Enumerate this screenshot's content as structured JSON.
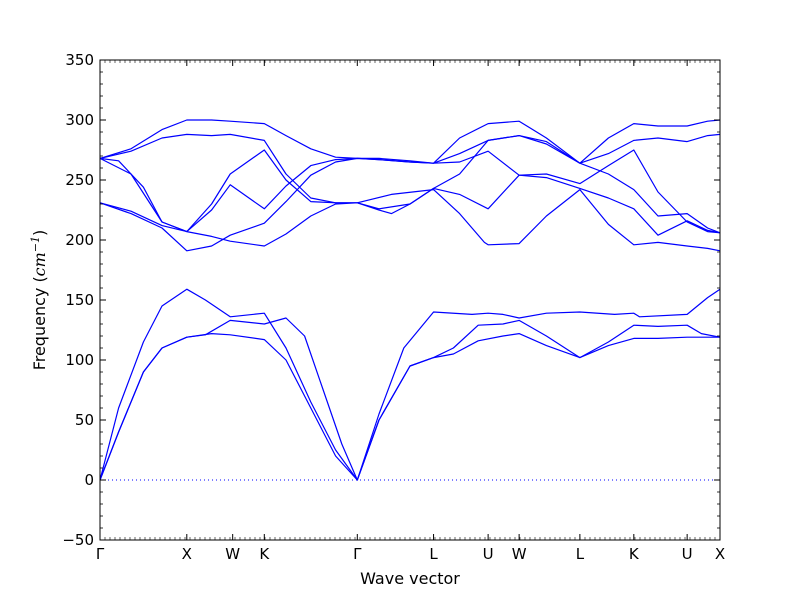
{
  "chart_data": {
    "type": "line",
    "xlabel": "Wave vector",
    "ylabel": {
      "text": "Frequency (",
      "unit_base": "cm",
      "unit_exp": "−1",
      "close": ")"
    },
    "ylim": [
      -50,
      350
    ],
    "yticks": [
      "−50",
      "0",
      "50",
      "100",
      "150",
      "200",
      "250",
      "300",
      "350"
    ],
    "ytick_values": [
      -50,
      0,
      50,
      100,
      150,
      200,
      250,
      300,
      350
    ],
    "xlim": [
      0,
      1
    ],
    "kpoints": [
      {
        "label": "Γ",
        "x": 0.0
      },
      {
        "label": "X",
        "x": 0.14
      },
      {
        "label": "W",
        "x": 0.214
      },
      {
        "label": "K",
        "x": 0.265
      },
      {
        "label": "Γ",
        "x": 0.415
      },
      {
        "label": "L",
        "x": 0.538
      },
      {
        "label": "U",
        "x": 0.626
      },
      {
        "label": "W",
        "x": 0.676
      },
      {
        "label": "L",
        "x": 0.774
      },
      {
        "label": "K",
        "x": 0.861
      },
      {
        "label": "U",
        "x": 0.947
      },
      {
        "label": "X",
        "x": 1.0
      }
    ],
    "zero_line": true,
    "line_color": "#0000ff",
    "series": [
      {
        "values": [
          [
            0,
            0
          ],
          [
            0.03,
            60
          ],
          [
            0.07,
            115
          ],
          [
            0.1,
            145
          ],
          [
            0.14,
            159
          ],
          [
            0.17,
            150
          ],
          [
            0.21,
            136
          ],
          [
            0.265,
            139
          ],
          [
            0.3,
            110
          ],
          [
            0.34,
            65
          ],
          [
            0.38,
            25
          ],
          [
            0.415,
            0
          ],
          [
            0.45,
            55
          ],
          [
            0.49,
            110
          ],
          [
            0.538,
            140
          ],
          [
            0.6,
            138
          ],
          [
            0.626,
            139
          ],
          [
            0.65,
            138
          ],
          [
            0.676,
            135
          ],
          [
            0.72,
            139
          ],
          [
            0.774,
            140
          ],
          [
            0.83,
            138
          ],
          [
            0.861,
            139
          ],
          [
            0.87,
            136
          ],
          [
            0.947,
            138
          ],
          [
            0.98,
            152
          ],
          [
            1.0,
            159
          ]
        ]
      },
      {
        "values": [
          [
            0,
            0
          ],
          [
            0.03,
            40
          ],
          [
            0.07,
            90
          ],
          [
            0.1,
            110
          ],
          [
            0.14,
            119
          ],
          [
            0.17,
            121
          ],
          [
            0.21,
            133
          ],
          [
            0.265,
            130
          ],
          [
            0.3,
            135
          ],
          [
            0.33,
            120
          ],
          [
            0.36,
            75
          ],
          [
            0.39,
            30
          ],
          [
            0.415,
            0
          ],
          [
            0.45,
            50
          ],
          [
            0.5,
            95
          ],
          [
            0.538,
            102
          ],
          [
            0.57,
            110
          ],
          [
            0.61,
            129
          ],
          [
            0.65,
            130
          ],
          [
            0.676,
            133
          ],
          [
            0.72,
            120
          ],
          [
            0.774,
            102
          ],
          [
            0.82,
            115
          ],
          [
            0.861,
            129
          ],
          [
            0.9,
            128
          ],
          [
            0.947,
            129
          ],
          [
            0.97,
            122
          ],
          [
            1.0,
            119
          ]
        ]
      },
      {
        "values": [
          [
            0,
            0
          ],
          [
            0.03,
            40
          ],
          [
            0.07,
            90
          ],
          [
            0.1,
            110
          ],
          [
            0.14,
            119
          ],
          [
            0.18,
            122
          ],
          [
            0.21,
            121
          ],
          [
            0.265,
            117
          ],
          [
            0.3,
            100
          ],
          [
            0.34,
            60
          ],
          [
            0.38,
            20
          ],
          [
            0.415,
            0
          ],
          [
            0.45,
            50
          ],
          [
            0.5,
            95
          ],
          [
            0.538,
            102
          ],
          [
            0.57,
            105
          ],
          [
            0.61,
            116
          ],
          [
            0.65,
            120
          ],
          [
            0.676,
            122
          ],
          [
            0.72,
            112
          ],
          [
            0.774,
            102
          ],
          [
            0.82,
            112
          ],
          [
            0.861,
            118
          ],
          [
            0.9,
            118
          ],
          [
            0.947,
            119
          ],
          [
            1.0,
            119
          ]
        ]
      },
      {
        "values": [
          [
            0,
            268
          ],
          [
            0.03,
            266
          ],
          [
            0.07,
            244
          ],
          [
            0.1,
            215
          ],
          [
            0.14,
            207
          ],
          [
            0.18,
            203
          ],
          [
            0.21,
            199
          ],
          [
            0.265,
            195
          ],
          [
            0.3,
            205
          ],
          [
            0.34,
            220
          ],
          [
            0.38,
            230
          ],
          [
            0.415,
            231
          ],
          [
            0.47,
            238
          ],
          [
            0.538,
            242
          ],
          [
            0.58,
            222
          ],
          [
            0.62,
            198
          ],
          [
            0.626,
            196
          ],
          [
            0.676,
            197
          ],
          [
            0.72,
            220
          ],
          [
            0.774,
            242
          ],
          [
            0.82,
            213
          ],
          [
            0.861,
            196
          ],
          [
            0.9,
            198
          ],
          [
            0.947,
            195
          ],
          [
            0.98,
            193
          ],
          [
            1.0,
            191
          ]
        ]
      },
      {
        "values": [
          [
            0,
            231
          ],
          [
            0.05,
            222
          ],
          [
            0.1,
            210
          ],
          [
            0.14,
            191
          ],
          [
            0.18,
            195
          ],
          [
            0.21,
            204
          ],
          [
            0.265,
            214
          ],
          [
            0.3,
            232
          ],
          [
            0.34,
            254
          ],
          [
            0.38,
            265
          ],
          [
            0.415,
            268
          ],
          [
            0.45,
            267
          ],
          [
            0.5,
            265
          ],
          [
            0.538,
            264
          ],
          [
            0.58,
            265
          ],
          [
            0.626,
            274
          ],
          [
            0.676,
            254
          ],
          [
            0.72,
            255
          ],
          [
            0.774,
            247
          ],
          [
            0.82,
            262
          ],
          [
            0.861,
            275
          ],
          [
            0.9,
            240
          ],
          [
            0.947,
            215
          ],
          [
            0.98,
            207
          ],
          [
            1.0,
            206
          ]
        ]
      },
      {
        "values": [
          [
            0,
            231
          ],
          [
            0.05,
            224
          ],
          [
            0.1,
            212
          ],
          [
            0.14,
            207
          ],
          [
            0.18,
            230
          ],
          [
            0.21,
            255
          ],
          [
            0.265,
            275
          ],
          [
            0.3,
            250
          ],
          [
            0.34,
            232
          ],
          [
            0.38,
            231
          ],
          [
            0.415,
            231
          ],
          [
            0.45,
            226
          ],
          [
            0.5,
            230
          ],
          [
            0.538,
            243
          ],
          [
            0.58,
            238
          ],
          [
            0.626,
            226
          ],
          [
            0.676,
            254
          ],
          [
            0.72,
            252
          ],
          [
            0.774,
            243
          ],
          [
            0.82,
            235
          ],
          [
            0.861,
            226
          ],
          [
            0.9,
            204
          ],
          [
            0.947,
            216
          ],
          [
            0.98,
            208
          ],
          [
            1.0,
            206
          ]
        ]
      },
      {
        "values": [
          [
            0,
            268
          ],
          [
            0.05,
            255
          ],
          [
            0.1,
            215
          ],
          [
            0.14,
            207
          ],
          [
            0.18,
            225
          ],
          [
            0.21,
            246
          ],
          [
            0.265,
            226
          ],
          [
            0.3,
            245
          ],
          [
            0.34,
            262
          ],
          [
            0.38,
            267
          ],
          [
            0.415,
            268
          ],
          [
            0.45,
            267
          ],
          [
            0.5,
            265
          ],
          [
            0.538,
            264
          ],
          [
            0.58,
            272
          ],
          [
            0.626,
            283
          ],
          [
            0.676,
            287
          ],
          [
            0.72,
            280
          ],
          [
            0.774,
            264
          ],
          [
            0.82,
            255
          ],
          [
            0.861,
            242
          ],
          [
            0.9,
            220
          ],
          [
            0.947,
            222
          ],
          [
            0.98,
            210
          ],
          [
            1.0,
            206
          ]
        ]
      },
      {
        "values": [
          [
            0,
            268
          ],
          [
            0.05,
            274
          ],
          [
            0.1,
            285
          ],
          [
            0.14,
            288
          ],
          [
            0.18,
            287
          ],
          [
            0.21,
            288
          ],
          [
            0.265,
            283
          ],
          [
            0.3,
            255
          ],
          [
            0.34,
            235
          ],
          [
            0.38,
            231
          ],
          [
            0.415,
            231
          ],
          [
            0.45,
            225
          ],
          [
            0.47,
            222
          ],
          [
            0.5,
            230
          ],
          [
            0.538,
            243
          ],
          [
            0.58,
            255
          ],
          [
            0.626,
            283
          ],
          [
            0.676,
            287
          ],
          [
            0.72,
            282
          ],
          [
            0.774,
            264
          ],
          [
            0.82,
            272
          ],
          [
            0.861,
            283
          ],
          [
            0.9,
            285
          ],
          [
            0.947,
            282
          ],
          [
            0.98,
            287
          ],
          [
            1.0,
            288
          ]
        ]
      },
      {
        "values": [
          [
            0,
            268
          ],
          [
            0.05,
            276
          ],
          [
            0.1,
            292
          ],
          [
            0.14,
            300
          ],
          [
            0.18,
            300
          ],
          [
            0.21,
            299
          ],
          [
            0.265,
            297
          ],
          [
            0.3,
            287
          ],
          [
            0.34,
            276
          ],
          [
            0.38,
            269
          ],
          [
            0.415,
            268
          ],
          [
            0.45,
            268
          ],
          [
            0.5,
            266
          ],
          [
            0.538,
            264
          ],
          [
            0.58,
            285
          ],
          [
            0.626,
            297
          ],
          [
            0.676,
            299
          ],
          [
            0.72,
            285
          ],
          [
            0.774,
            264
          ],
          [
            0.82,
            285
          ],
          [
            0.861,
            297
          ],
          [
            0.9,
            295
          ],
          [
            0.947,
            295
          ],
          [
            0.98,
            299
          ],
          [
            1.0,
            300
          ]
        ]
      }
    ]
  }
}
